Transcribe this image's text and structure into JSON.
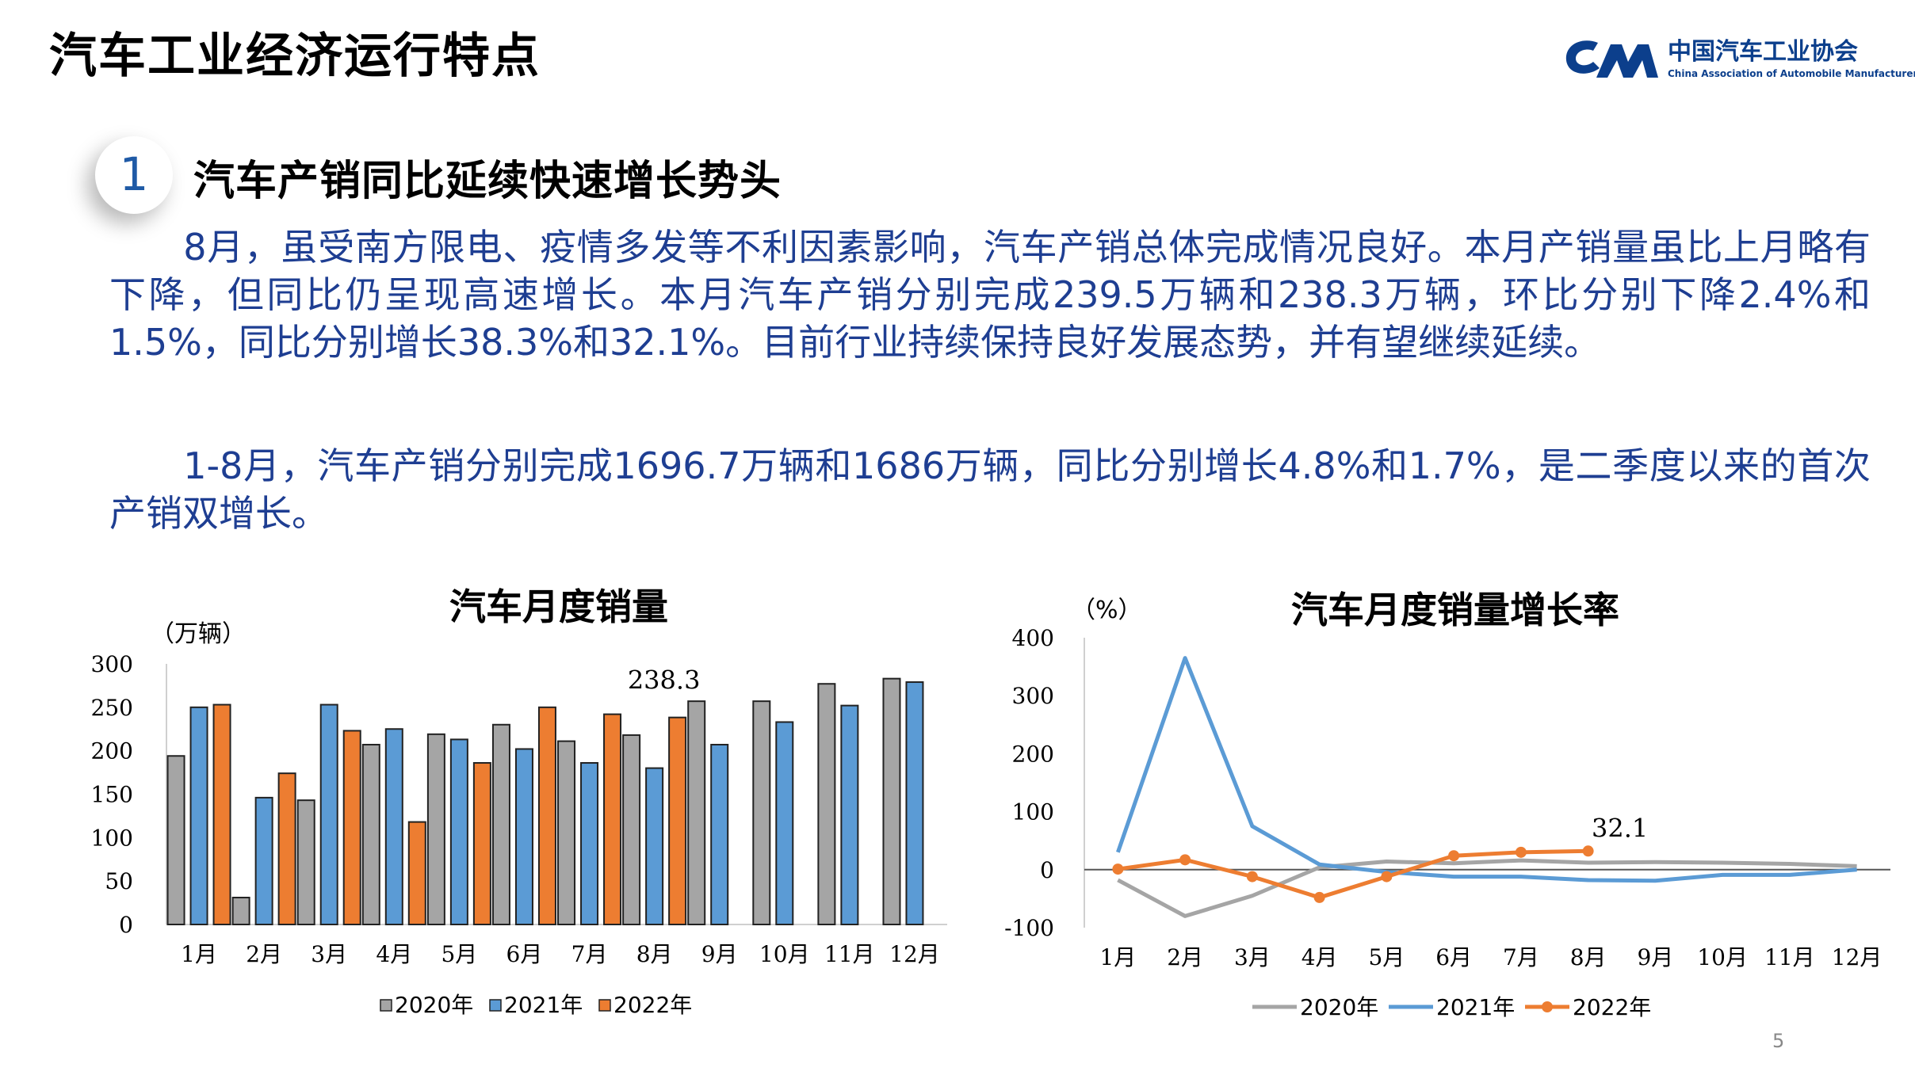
{
  "header": {
    "title": "汽车工业经济运行特点",
    "logo_cn": "中国汽车工业协会",
    "logo_en": "China Association of Automobile Manufacturers"
  },
  "section": {
    "number": "1",
    "title": "汽车产销同比延续快速增长势头"
  },
  "body": {
    "paragraph1": "　　8月，虽受南方限电、疫情多发等不利因素影响，汽车产销总体完成情况良好。本月产销量虽比上月略有下降，但同比仍呈现高速增长。本月汽车产销分别完成239.5万辆和238.3万辆，环比分别下降2.4%和1.5%，同比分别增长38.3%和32.1%。目前行业持续保持良好发展态势，并有望继续延续。",
    "paragraph2": "　　1-8月，汽车产销分别完成1696.7万辆和1686万辆，同比分别增长4.8%和1.7%，是二季度以来的首次产销双增长。"
  },
  "page_number": "5",
  "colors": {
    "s2020_bar": "#a5a5a5",
    "s2021": "#5b9bd5",
    "s2022": "#ed7d31",
    "line2020": "#a5a5a5",
    "accent": "#1e3e92"
  },
  "chart_data": [
    {
      "type": "bar",
      "title": "汽车月度销量",
      "ylabel": "（万辆）",
      "ylim": [
        0,
        300
      ],
      "yticks": [
        "0",
        "50",
        "100",
        "150",
        "200",
        "250",
        "300"
      ],
      "categories": [
        "1月",
        "2月",
        "3月",
        "4月",
        "5月",
        "6月",
        "7月",
        "8月",
        "9月",
        "10月",
        "11月",
        "12月"
      ],
      "series": [
        {
          "name": "2020年",
          "values": [
            194,
            31,
            143,
            207,
            219,
            230,
            211,
            218,
            257,
            257,
            277,
            283
          ]
        },
        {
          "name": "2021年",
          "values": [
            250,
            146,
            253,
            225,
            213,
            202,
            186,
            180,
            207,
            233,
            252,
            279
          ]
        },
        {
          "name": "2022年",
          "values": [
            253,
            174,
            223,
            118,
            186,
            250,
            242,
            238.3,
            null,
            null,
            null,
            null
          ]
        }
      ],
      "annotation": "238.3",
      "legend": "bottom"
    },
    {
      "type": "line",
      "title": "汽车月度销量增长率",
      "ylabel": "（%）",
      "ylim": [
        -100,
        400
      ],
      "yticks": [
        "-100",
        "0",
        "100",
        "200",
        "300",
        "400"
      ],
      "categories": [
        "1月",
        "2月",
        "3月",
        "4月",
        "5月",
        "6月",
        "7月",
        "8月",
        "9月",
        "10月",
        "11月",
        "12月"
      ],
      "series": [
        {
          "name": "2020年",
          "values": [
            -18,
            -80,
            -45,
            4,
            14,
            11,
            16,
            12,
            13,
            12,
            10,
            6
          ]
        },
        {
          "name": "2021年",
          "values": [
            30,
            365,
            75,
            9,
            -4,
            -12,
            -12,
            -18,
            -19,
            -9,
            -9,
            0
          ]
        },
        {
          "name": "2022年",
          "values": [
            1,
            17,
            -12,
            -48,
            -12,
            24,
            30,
            32.1,
            null,
            null,
            null,
            null
          ]
        }
      ],
      "annotation": "32.1",
      "legend": "bottom"
    }
  ]
}
